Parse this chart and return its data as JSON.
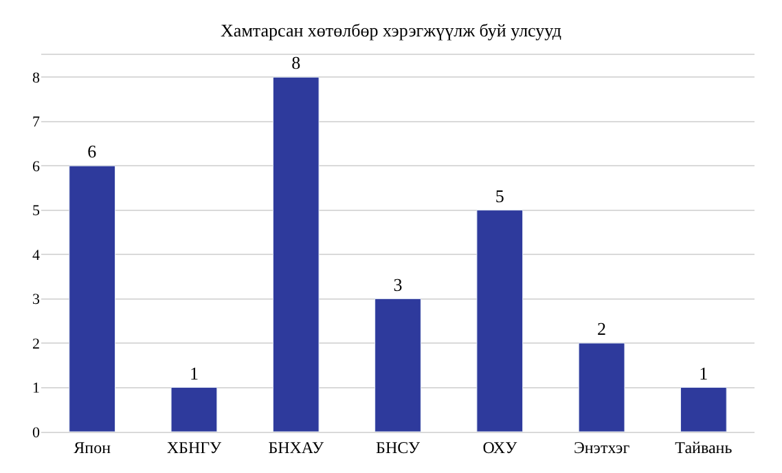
{
  "chart_data": {
    "type": "bar",
    "title": "Хамтарсан хөтөлбөр хэрэгжүүлж буй улсууд",
    "categories": [
      "Япон",
      "ХБНГУ",
      "БНХАУ",
      "БНСУ",
      "ОХУ",
      "Энэтхэг",
      "Тайвань"
    ],
    "values": [
      6,
      1,
      8,
      3,
      5,
      2,
      1
    ],
    "color": "#2e3a9c",
    "ylim": [
      0,
      8.5
    ],
    "yticks": [
      0,
      1,
      2,
      3,
      4,
      5,
      6,
      7,
      8
    ],
    "grid": "y",
    "data_labels": true
  }
}
